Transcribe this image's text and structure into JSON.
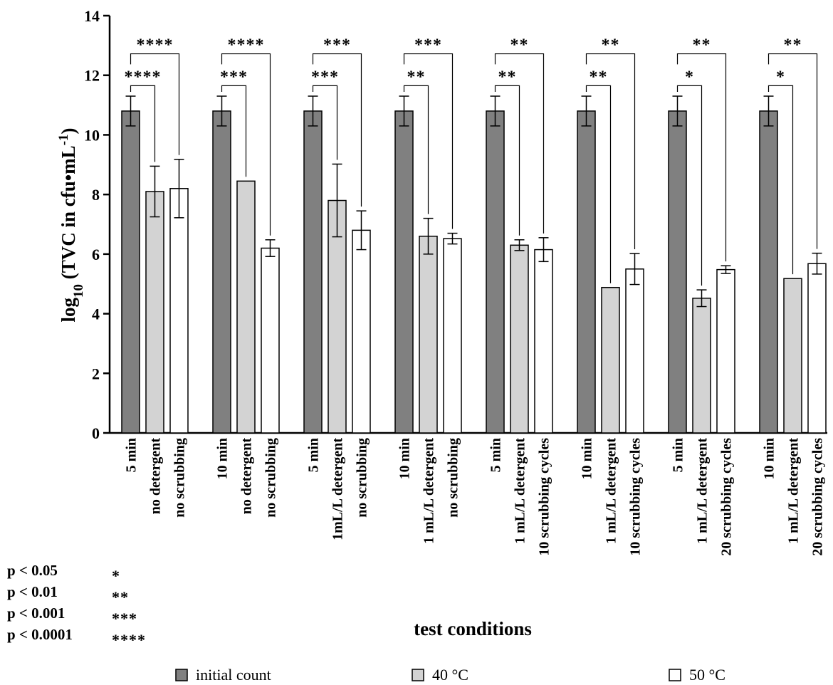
{
  "chart_data": {
    "type": "bar",
    "ylabel_main": "log",
    "ylabel_sub": "10",
    "ylabel_rest": " (TVC in cfu•mL",
    "ylabel_sup": "-1",
    "ylabel_close": ")",
    "xlabel": "test conditions",
    "ylim": [
      0,
      14
    ],
    "yticks": [
      0,
      2,
      4,
      6,
      8,
      10,
      12,
      14
    ],
    "grid": false,
    "legend_position": "bottom",
    "series": [
      {
        "name": "initial count",
        "color": "#808080",
        "values": [
          10.8,
          10.8,
          10.8,
          10.8,
          10.8,
          10.8,
          10.8,
          10.8
        ],
        "errors": [
          0.5,
          0.5,
          0.5,
          0.5,
          0.5,
          0.5,
          0.5,
          0.5
        ]
      },
      {
        "name": "40 °C",
        "color": "#d3d3d3",
        "values": [
          8.1,
          8.45,
          7.8,
          6.6,
          6.3,
          4.88,
          4.52,
          5.18
        ],
        "errors": [
          0.85,
          0,
          1.22,
          0.6,
          0.18,
          0,
          0.28,
          0
        ]
      },
      {
        "name": "50 °C",
        "color": "#ffffff",
        "values": [
          8.2,
          6.2,
          6.8,
          6.52,
          6.15,
          5.5,
          5.48,
          5.68
        ],
        "errors": [
          0.98,
          0.28,
          0.65,
          0.18,
          0.4,
          0.52,
          0.13,
          0.35
        ]
      }
    ],
    "groups": [
      {
        "labels": [
          "5 min",
          "no detergent",
          "no scrubbing"
        ],
        "sig_40": "****",
        "sig_50": "****"
      },
      {
        "labels": [
          "10 min",
          "no detergent",
          "no scrubbing"
        ],
        "sig_40": "***",
        "sig_50": "****"
      },
      {
        "labels": [
          "5 min",
          "1mL/L detergent",
          "no scrubbing"
        ],
        "sig_40": "***",
        "sig_50": "***"
      },
      {
        "labels": [
          "10 min",
          "1 mL/L detergent",
          "no scrubbing"
        ],
        "sig_40": "**",
        "sig_50": "***"
      },
      {
        "labels": [
          "5 min",
          "1 mL/L detergent",
          "10 scrubbing cycles"
        ],
        "sig_40": "**",
        "sig_50": "**"
      },
      {
        "labels": [
          "10 min",
          "1 mL/L detergent",
          "10 scrubbing cycles"
        ],
        "sig_40": "**",
        "sig_50": "**"
      },
      {
        "labels": [
          "5 min",
          "1 mL/L detergent",
          "20 scrubbing cycles"
        ],
        "sig_40": "*",
        "sig_50": "**"
      },
      {
        "labels": [
          "10 min",
          "1 mL/L detergent",
          "20 scrubbing cycles"
        ],
        "sig_40": "*",
        "sig_50": "**"
      }
    ],
    "significance_key": [
      {
        "p": "p < 0.05",
        "stars": "*"
      },
      {
        "p": "p < 0.01",
        "stars": "**"
      },
      {
        "p": "p < 0.001",
        "stars": "***"
      },
      {
        "p": "p < 0.0001",
        "stars": "****"
      }
    ]
  }
}
